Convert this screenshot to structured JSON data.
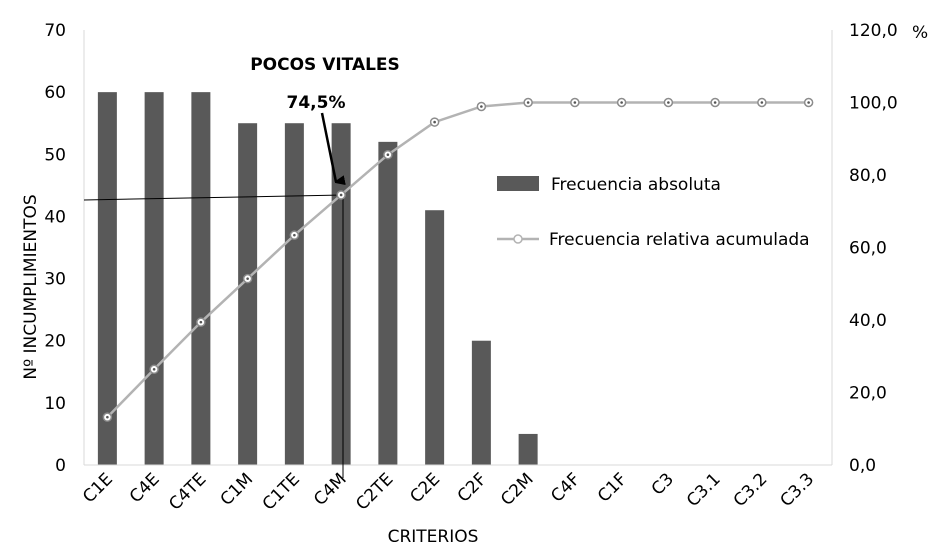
{
  "chart_data": {
    "type": "bar",
    "categories": [
      "C1E",
      "C4E",
      "C4TE",
      "C1M",
      "C1TE",
      "C4M",
      "C2TE",
      "C2E",
      "C2F",
      "C2M",
      "C4F",
      "C1F",
      "C3",
      "C3.1",
      "C3.2",
      "C3.3"
    ],
    "series": [
      {
        "name": "Frecuencia absoluta",
        "type": "bar",
        "axis": "left",
        "values": [
          60,
          60,
          60,
          55,
          55,
          55,
          52,
          41,
          20,
          5,
          0,
          0,
          0,
          0,
          0,
          0
        ],
        "color": "#595959"
      },
      {
        "name": "Frecuencia relativa acumulada",
        "type": "line",
        "axis": "right",
        "values": [
          13.2,
          26.4,
          39.4,
          51.4,
          63.4,
          74.5,
          85.6,
          94.6,
          98.9,
          100.0,
          100.0,
          100.0,
          100.0,
          100.0,
          100.0,
          100.0
        ],
        "color": "#b3b3b3"
      }
    ],
    "xlabel": "CRITERIOS",
    "ylabel": "Nº INCUMPLIMIENTOS",
    "ylim": [
      0,
      70
    ],
    "y_ticks": [
      "0",
      "10",
      "20",
      "30",
      "40",
      "50",
      "60",
      "70"
    ],
    "y2lim": [
      0,
      120
    ],
    "y2_ticks": [
      "0,0",
      "20,0",
      "40,0",
      "60,0",
      "80,0",
      "100,0",
      "120,0"
    ],
    "y2_unit": "%",
    "grid": false,
    "legend_position": "right",
    "annotations": {
      "title_label": "POCOS VITALES",
      "value_label": "74,5%"
    }
  }
}
